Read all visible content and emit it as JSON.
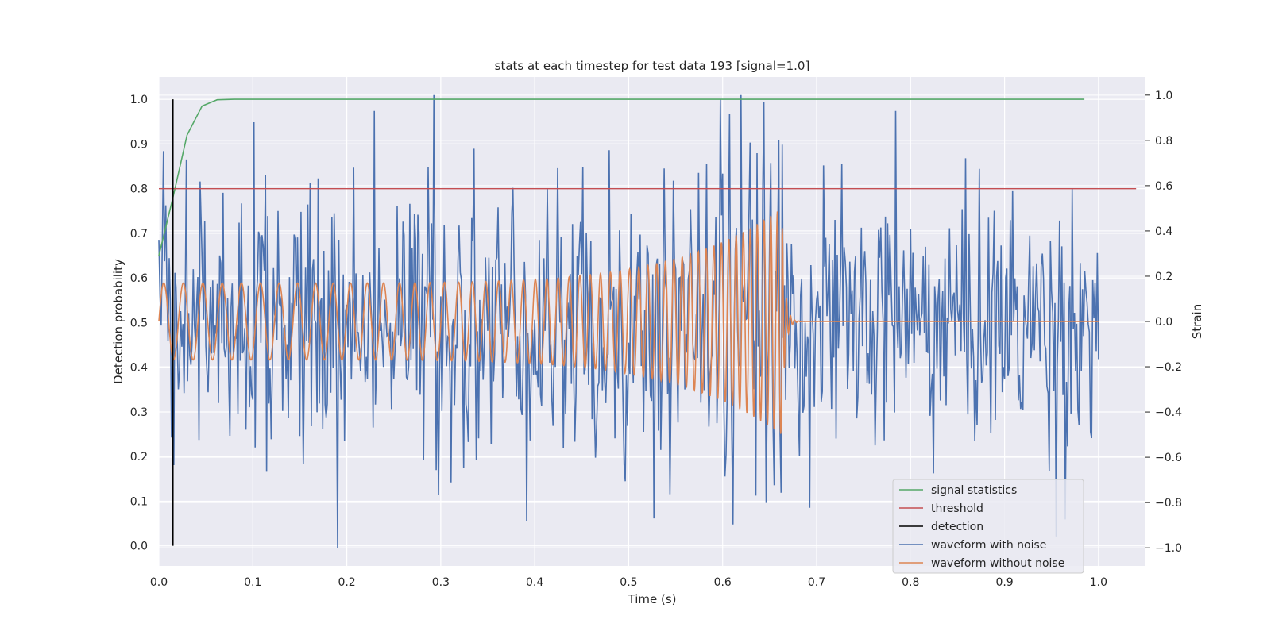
{
  "chart_data": {
    "type": "line",
    "title": "stats at each timestep for test data 193 [signal=1.0]",
    "xlabel": "Time (s)",
    "ylabel": "Detection probability",
    "y2label": "Strain",
    "xlim": [
      0.0,
      1.05
    ],
    "ylim": [
      -0.045,
      1.05
    ],
    "y2lim": [
      -1.08,
      1.08
    ],
    "xticks": [
      "0.0",
      "0.1",
      "0.2",
      "0.3",
      "0.4",
      "0.5",
      "0.6",
      "0.7",
      "0.8",
      "0.9",
      "1.0"
    ],
    "yticks": [
      "0.0",
      "0.1",
      "0.2",
      "0.3",
      "0.4",
      "0.5",
      "0.6",
      "0.7",
      "0.8",
      "0.9",
      "1.0"
    ],
    "y2ticks": [
      "−1.0",
      "−0.8",
      "−0.6",
      "−0.4",
      "−0.2",
      "0.0",
      "0.2",
      "0.4",
      "0.6",
      "0.8",
      "1.0"
    ],
    "grid": true,
    "legend_position": "lower-right",
    "legend": [
      "signal statistics",
      "threshold",
      "detection",
      "waveform with noise",
      "waveform without noise"
    ],
    "colors": {
      "signal_statistics": "#55a868",
      "threshold": "#c44e52",
      "detection": "#000000",
      "waveform_with_noise": "#4c72b0",
      "waveform_without_noise": "#dd8452",
      "plot_background": "#eaeaf2",
      "grid": "#ffffff"
    },
    "signal_statistics": {
      "x": [
        0.0,
        0.015,
        0.03,
        0.046,
        0.062,
        0.08,
        0.2,
        0.4,
        0.6,
        0.8,
        0.985
      ],
      "y": [
        0.65,
        0.78,
        0.92,
        0.985,
        0.999,
        1.0,
        1.0,
        1.0,
        1.0,
        1.0,
        1.0
      ]
    },
    "threshold": {
      "y": 0.8,
      "x": [
        0.0,
        1.04
      ]
    },
    "detection": {
      "x": 0.015,
      "y": [
        0.0,
        1.0
      ]
    },
    "waveform_with_noise": {
      "axis": "right",
      "x_range": [
        0.0,
        1.0
      ],
      "y_range": [
        -1.0,
        1.0
      ],
      "noise_std": 0.28,
      "notable_points": [
        {
          "x": 0.19,
          "y": -1.0
        },
        {
          "x": 0.293,
          "y": 1.0
        },
        {
          "x": 0.62,
          "y": 1.0
        },
        {
          "x": 0.598,
          "y": 0.98
        },
        {
          "x": 0.527,
          "y": -0.87
        },
        {
          "x": 0.955,
          "y": -0.95
        },
        {
          "x": 0.784,
          "y": 0.93
        },
        {
          "x": 0.101,
          "y": 0.88
        },
        {
          "x": 0.229,
          "y": 0.93
        }
      ]
    },
    "waveform_without_noise": {
      "axis": "right",
      "x_range": [
        0.0,
        1.0
      ],
      "merger_time": 0.663,
      "amplitude_start": 0.17,
      "amplitude_peak": 0.5,
      "cycles_at_start_per_second": 48,
      "cycles_at_merger_per_second": 145
    }
  }
}
